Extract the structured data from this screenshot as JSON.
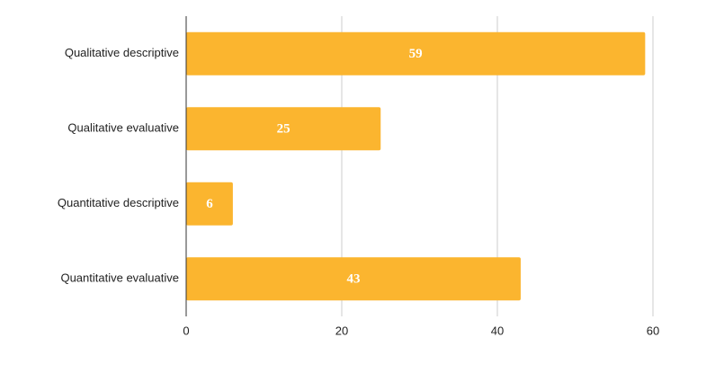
{
  "chart_data": {
    "type": "hbar",
    "categories": [
      "Qualitative descriptive",
      "Qualitative evaluative",
      "Quantitative descriptive",
      "Quantitative evaluative"
    ],
    "values": [
      59,
      25,
      6,
      43
    ],
    "color": "#fbb52f",
    "xlim": [
      0,
      60
    ],
    "xticks": [
      0,
      20,
      40,
      60
    ],
    "grid": true
  }
}
